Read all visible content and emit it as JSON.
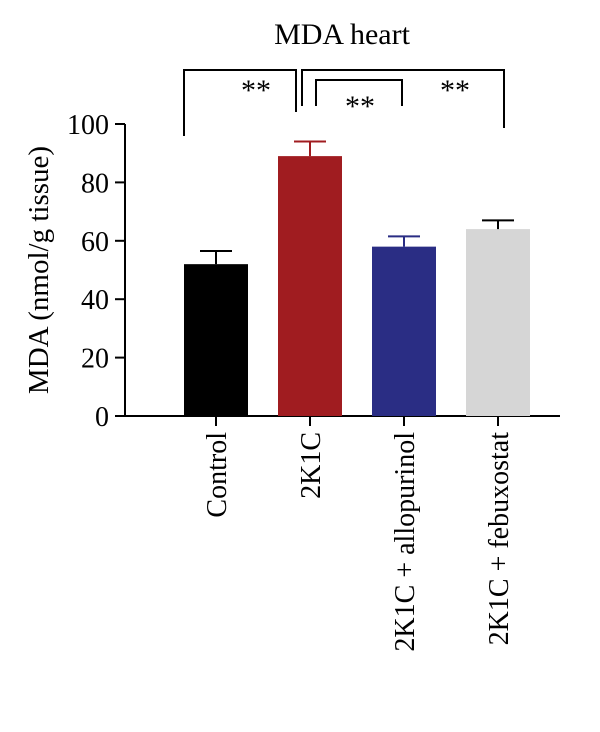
{
  "chart_data": {
    "type": "bar",
    "title": "MDA heart",
    "xlabel": "",
    "ylabel": "MDA (nmol/g tissue)",
    "ylim": [
      0,
      100
    ],
    "yticks": [
      0,
      20,
      40,
      60,
      80,
      100
    ],
    "categories": [
      "Control",
      "2K1C",
      "2K1C + allopurinol",
      "2K1C + febuxostat"
    ],
    "values": [
      52,
      89,
      58,
      64
    ],
    "errors": [
      4.5,
      5,
      3.5,
      3
    ],
    "colors": [
      "#000000",
      "#a01c20",
      "#2a2d84",
      "#d6d6d6"
    ],
    "grid": false,
    "significance": [
      {
        "from": 0,
        "to": 1,
        "label": "**"
      },
      {
        "from": 1,
        "to": 2,
        "label": "**"
      },
      {
        "from": 1,
        "to": 3,
        "label": "**"
      }
    ]
  }
}
